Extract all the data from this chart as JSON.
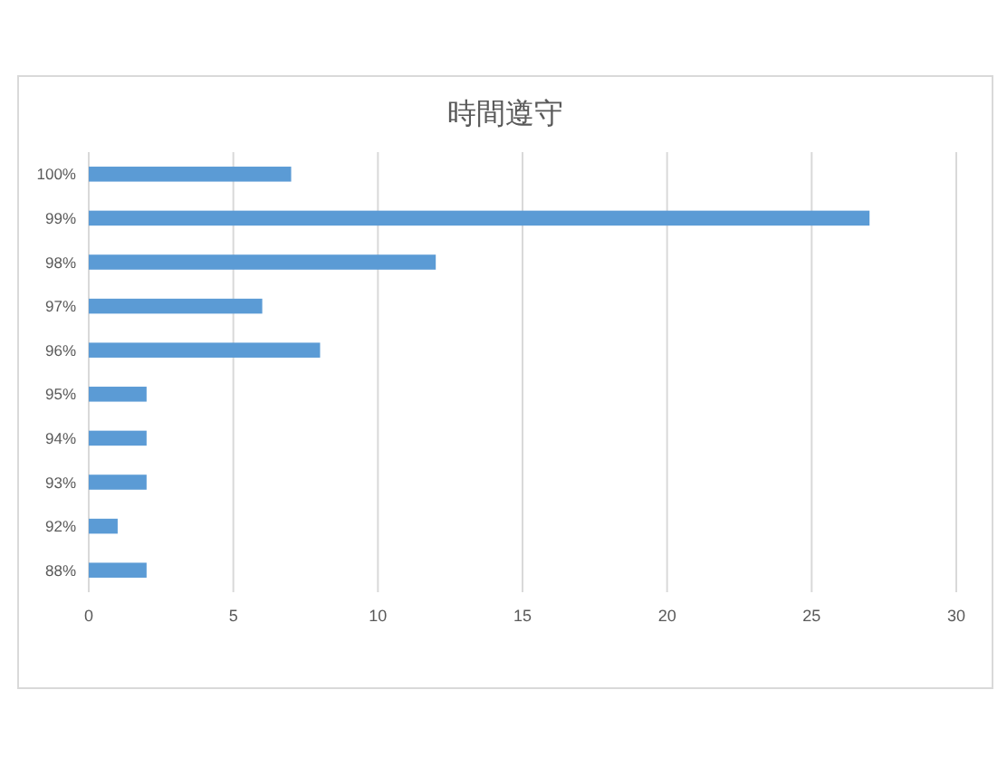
{
  "chart_data": {
    "type": "bar",
    "orientation": "horizontal",
    "title": "時間遵守",
    "categories": [
      "100%",
      "99%",
      "98%",
      "97%",
      "96%",
      "95%",
      "94%",
      "93%",
      "92%",
      "88%"
    ],
    "values": [
      7,
      27,
      12,
      6,
      8,
      2,
      2,
      2,
      1,
      2
    ],
    "color": "#5b9bd5",
    "xlim": [
      0,
      30
    ],
    "xticks": [
      0,
      5,
      10,
      15,
      20,
      25,
      30
    ],
    "grid": "x"
  }
}
